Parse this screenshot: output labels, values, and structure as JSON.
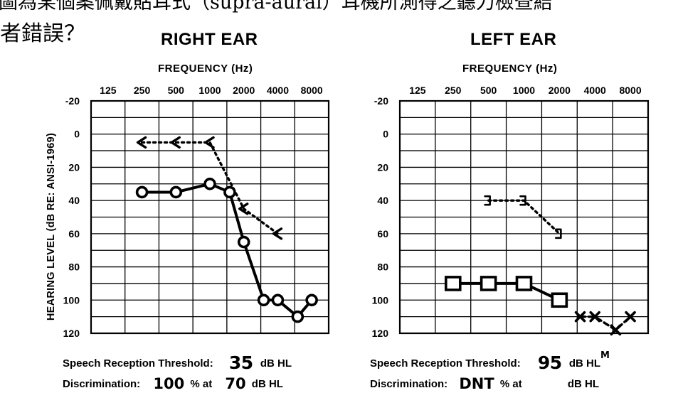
{
  "question": {
    "line1": "圖為某個案佩戴貼耳式（supra-aural）耳機所測得之聽力檢查結",
    "line2": "者錯誤？"
  },
  "chart_data": [
    {
      "type": "line",
      "title": "RIGHT EAR",
      "xlabel": "FREQUENCY (Hz)",
      "ylabel": "HEARING LEVEL (dB RE: ANSI-1969)",
      "x_ticks": [
        "125",
        "250",
        "500",
        "1000",
        "2000",
        "4000",
        "8000"
      ],
      "y_ticks": [
        "-20",
        "0",
        "20",
        "40",
        "60",
        "80",
        "100",
        "120"
      ],
      "ylim": [
        -20,
        120
      ],
      "grid": true,
      "series": [
        {
          "symbol": "O",
          "line": "solid",
          "points": [
            {
              "hz": 250,
              "db": 35
            },
            {
              "hz": 500,
              "db": 35
            },
            {
              "hz": 1000,
              "db": 30
            },
            {
              "hz": 1500,
              "db": 35
            },
            {
              "hz": 2000,
              "db": 65
            },
            {
              "hz": 3000,
              "db": 100
            },
            {
              "hz": 4000,
              "db": 100
            },
            {
              "hz": 6000,
              "db": 110
            },
            {
              "hz": 8000,
              "db": 100
            }
          ]
        },
        {
          "symbol": "<",
          "line": "dotted",
          "points": [
            {
              "hz": 250,
              "db": 5
            },
            {
              "hz": 500,
              "db": 5
            },
            {
              "hz": 1000,
              "db": 5
            },
            {
              "hz": 2000,
              "db": 45
            },
            {
              "hz": 4000,
              "db": 60
            }
          ]
        }
      ]
    },
    {
      "type": "line",
      "title": "LEFT EAR",
      "xlabel": "FREQUENCY (Hz)",
      "x_ticks": [
        "125",
        "250",
        "500",
        "1000",
        "2000",
        "4000",
        "8000"
      ],
      "y_ticks": [
        "-20",
        "0",
        "20",
        "40",
        "60",
        "80",
        "100",
        "120"
      ],
      "ylim": [
        -20,
        120
      ],
      "grid": true,
      "series": [
        {
          "symbol": "]",
          "line": "dotted",
          "points": [
            {
              "hz": 500,
              "db": 40
            },
            {
              "hz": 1000,
              "db": 40
            },
            {
              "hz": 2000,
              "db": 60
            }
          ]
        },
        {
          "symbol": "[",
          "line": "solid",
          "points": [
            {
              "hz": 250,
              "db": 90
            },
            {
              "hz": 500,
              "db": 90
            },
            {
              "hz": 1000,
              "db": 90
            },
            {
              "hz": 2000,
              "db": 100
            }
          ]
        },
        {
          "symbol": "X",
          "line": "dashed",
          "points": [
            {
              "hz": 3000,
              "db": 110
            },
            {
              "hz": 4000,
              "db": 110
            },
            {
              "hz": 6000,
              "db": 118
            },
            {
              "hz": 8000,
              "db": 110
            }
          ]
        }
      ]
    }
  ],
  "summary": {
    "right": {
      "srt_label": "Speech Reception Threshold:",
      "srt_value": "35",
      "srt_unit": "dB HL",
      "disc_label": "Discrimination:",
      "disc_value": "100",
      "disc_mid": "% at",
      "disc_level": "70",
      "disc_unit": "dB HL"
    },
    "left": {
      "srt_label": "Speech Reception Threshold:",
      "srt_value": "95",
      "srt_unit": "dB HL",
      "srt_note": "M",
      "disc_label": "Discrimination:",
      "disc_value": "DNT",
      "disc_mid": "% at",
      "disc_unit": "dB HL"
    }
  }
}
